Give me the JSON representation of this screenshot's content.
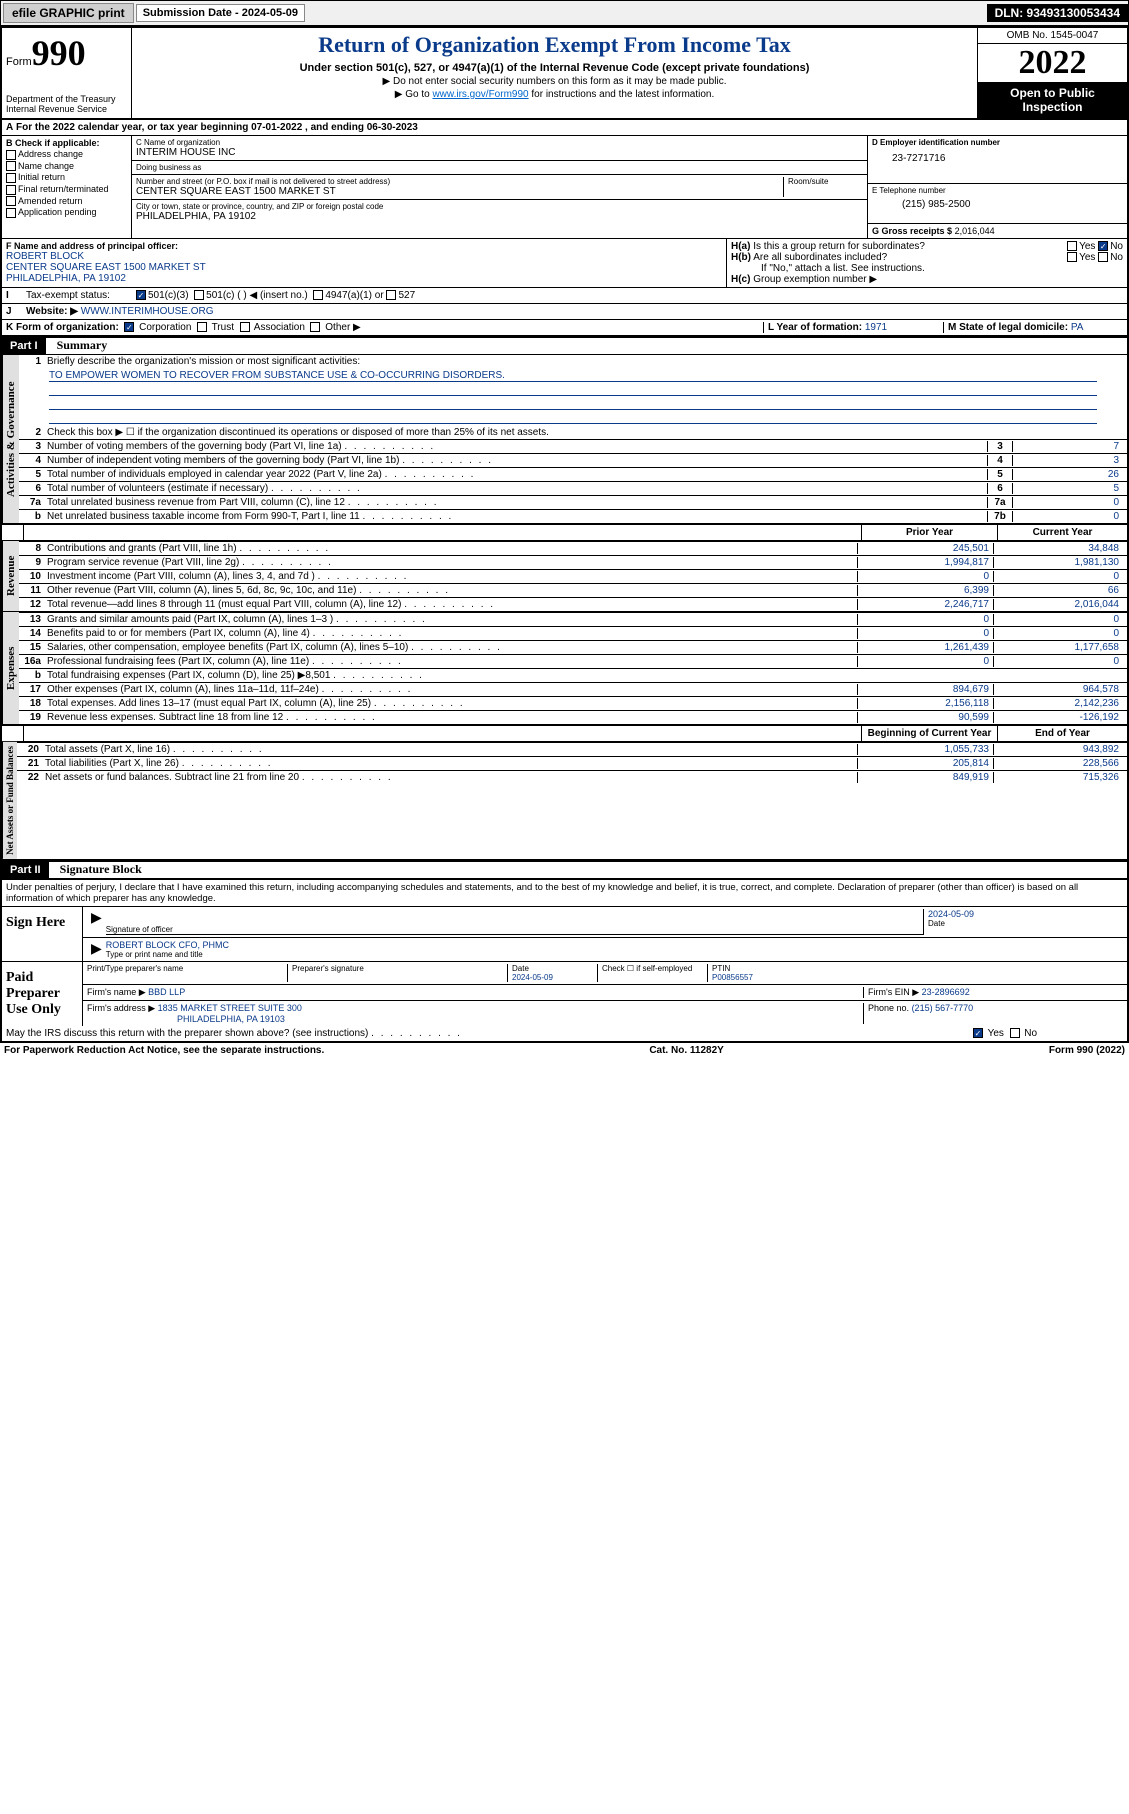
{
  "topbar": {
    "efile": "efile GRAPHIC print",
    "sub_label": "Submission Date - 2024-05-09",
    "dln": "DLN: 93493130053434"
  },
  "header": {
    "form_prefix": "Form",
    "form_num": "990",
    "dept": "Department of the Treasury\nInternal Revenue Service",
    "title": "Return of Organization Exempt From Income Tax",
    "sub": "Under section 501(c), 527, or 4947(a)(1) of the Internal Revenue Code (except private foundations)",
    "note1": "▶ Do not enter social security numbers on this form as it may be made public.",
    "note2_pre": "▶ Go to ",
    "note2_link": "www.irs.gov/Form990",
    "note2_post": " for instructions and the latest information.",
    "omb": "OMB No. 1545-0047",
    "year": "2022",
    "inspection": "Open to Public Inspection"
  },
  "row_a": "For the 2022 calendar year, or tax year beginning 07-01-2022   , and ending 06-30-2023",
  "col_b": {
    "title": "B Check if applicable:",
    "items": [
      "Address change",
      "Name change",
      "Initial return",
      "Final return/terminated",
      "Amended return",
      "Application pending"
    ]
  },
  "col_c": {
    "name_label": "C Name of organization",
    "name": "INTERIM HOUSE INC",
    "dba_label": "Doing business as",
    "dba": "",
    "addr_label": "Number and street (or P.O. box if mail is not delivered to street address)",
    "room_label": "Room/suite",
    "addr": "CENTER SQUARE EAST 1500 MARKET ST",
    "city_label": "City or town, state or province, country, and ZIP or foreign postal code",
    "city": "PHILADELPHIA, PA  19102"
  },
  "col_d": {
    "ein_label": "D Employer identification number",
    "ein": "23-7271716",
    "phone_label": "E Telephone number",
    "phone": "(215) 985-2500",
    "gross_label": "G Gross receipts $",
    "gross": "2,016,044"
  },
  "row_f": {
    "label": "F  Name and address of principal officer:",
    "name": "ROBERT BLOCK",
    "addr1": "CENTER SQUARE EAST 1500 MARKET ST",
    "addr2": "PHILADELPHIA, PA  19102"
  },
  "row_h": {
    "ha": "H(a)  Is this a group return for subordinates?",
    "hb": "H(b)  Are all subordinates included?",
    "hb_note": "If \"No,\" attach a list. See instructions.",
    "hc": "H(c)  Group exemption number ▶",
    "yes": "Yes",
    "no": "No"
  },
  "row_i": {
    "label": "Tax-exempt status:",
    "opts": [
      "501(c)(3)",
      "501(c) (  ) ◀ (insert no.)",
      "4947(a)(1) or",
      "527"
    ]
  },
  "row_j": {
    "label": "Website: ▶",
    "val": "WWW.INTERIMHOUSE.ORG"
  },
  "row_k": {
    "label": "K Form of organization:",
    "opts": [
      "Corporation",
      "Trust",
      "Association",
      "Other ▶"
    ]
  },
  "row_l": {
    "label": "L Year of formation:",
    "val": "1971"
  },
  "row_m": {
    "label": "M State of legal domicile:",
    "val": "PA"
  },
  "part1": {
    "bar": "Part I",
    "title": "Summary"
  },
  "summary": {
    "q1": "Briefly describe the organization's mission or most significant activities:",
    "mission": "TO EMPOWER WOMEN TO RECOVER FROM SUBSTANCE USE & CO-OCCURRING DISORDERS.",
    "q2": "Check this box ▶ ☐  if the organization discontinued its operations or disposed of more than 25% of its net assets.",
    "lines_gov": [
      {
        "n": "3",
        "t": "Number of voting members of the governing body (Part VI, line 1a)",
        "b": "3",
        "v": "7"
      },
      {
        "n": "4",
        "t": "Number of independent voting members of the governing body (Part VI, line 1b)",
        "b": "4",
        "v": "3"
      },
      {
        "n": "5",
        "t": "Total number of individuals employed in calendar year 2022 (Part V, line 2a)",
        "b": "5",
        "v": "26"
      },
      {
        "n": "6",
        "t": "Total number of volunteers (estimate if necessary)",
        "b": "6",
        "v": "5"
      },
      {
        "n": "7a",
        "t": "Total unrelated business revenue from Part VIII, column (C), line 12",
        "b": "7a",
        "v": "0"
      },
      {
        "n": "b",
        "t": "Net unrelated business taxable income from Form 990-T, Part I, line 11",
        "b": "7b",
        "v": "0"
      }
    ],
    "prior": "Prior Year",
    "current": "Current Year",
    "lines_rev": [
      {
        "n": "8",
        "t": "Contributions and grants (Part VIII, line 1h)",
        "p": "245,501",
        "c": "34,848"
      },
      {
        "n": "9",
        "t": "Program service revenue (Part VIII, line 2g)",
        "p": "1,994,817",
        "c": "1,981,130"
      },
      {
        "n": "10",
        "t": "Investment income (Part VIII, column (A), lines 3, 4, and 7d )",
        "p": "0",
        "c": "0"
      },
      {
        "n": "11",
        "t": "Other revenue (Part VIII, column (A), lines 5, 6d, 8c, 9c, 10c, and 11e)",
        "p": "6,399",
        "c": "66"
      },
      {
        "n": "12",
        "t": "Total revenue—add lines 8 through 11 (must equal Part VIII, column (A), line 12)",
        "p": "2,246,717",
        "c": "2,016,044"
      }
    ],
    "lines_exp": [
      {
        "n": "13",
        "t": "Grants and similar amounts paid (Part IX, column (A), lines 1–3 )",
        "p": "0",
        "c": "0"
      },
      {
        "n": "14",
        "t": "Benefits paid to or for members (Part IX, column (A), line 4)",
        "p": "0",
        "c": "0"
      },
      {
        "n": "15",
        "t": "Salaries, other compensation, employee benefits (Part IX, column (A), lines 5–10)",
        "p": "1,261,439",
        "c": "1,177,658"
      },
      {
        "n": "16a",
        "t": "Professional fundraising fees (Part IX, column (A), line 11e)",
        "p": "0",
        "c": "0"
      },
      {
        "n": "b",
        "t": "Total fundraising expenses (Part IX, column (D), line 25) ▶8,501",
        "p": "",
        "c": "",
        "shade": true
      },
      {
        "n": "17",
        "t": "Other expenses (Part IX, column (A), lines 11a–11d, 11f–24e)",
        "p": "894,679",
        "c": "964,578"
      },
      {
        "n": "18",
        "t": "Total expenses. Add lines 13–17 (must equal Part IX, column (A), line 25)",
        "p": "2,156,118",
        "c": "2,142,236"
      },
      {
        "n": "19",
        "t": "Revenue less expenses. Subtract line 18 from line 12",
        "p": "90,599",
        "c": "-126,192"
      }
    ],
    "begin": "Beginning of Current Year",
    "end": "End of Year",
    "lines_net": [
      {
        "n": "20",
        "t": "Total assets (Part X, line 16)",
        "p": "1,055,733",
        "c": "943,892"
      },
      {
        "n": "21",
        "t": "Total liabilities (Part X, line 26)",
        "p": "205,814",
        "c": "228,566"
      },
      {
        "n": "22",
        "t": "Net assets or fund balances. Subtract line 21 from line 20",
        "p": "849,919",
        "c": "715,326"
      }
    ]
  },
  "vtabs": {
    "gov": "Activities & Governance",
    "rev": "Revenue",
    "exp": "Expenses",
    "net": "Net Assets or Fund Balances"
  },
  "part2": {
    "bar": "Part II",
    "title": "Signature Block"
  },
  "penalties": "Under penalties of perjury, I declare that I have examined this return, including accompanying schedules and statements, and to the best of my knowledge and belief, it is true, correct, and complete. Declaration of preparer (other than officer) is based on all information of which preparer has any knowledge.",
  "sign": {
    "left": "Sign Here",
    "sig_label": "Signature of officer",
    "date_label": "Date",
    "date": "2024-05-09",
    "name": "ROBERT BLOCK CFO, PHMC",
    "name_label": "Type or print name and title"
  },
  "paid": {
    "left": "Paid Preparer Use Only",
    "h1": "Print/Type preparer's name",
    "h2": "Preparer's signature",
    "h3": "Date",
    "h3v": "2024-05-09",
    "h4": "Check ☐ if self-employed",
    "h5": "PTIN",
    "h5v": "P00856557",
    "firm_label": "Firm's name    ▶",
    "firm": "BBD LLP",
    "ein_label": "Firm's EIN ▶",
    "ein": "23-2896692",
    "addr_label": "Firm's address ▶",
    "addr1": "1835 MARKET STREET SUITE 300",
    "addr2": "PHILADELPHIA, PA  19103",
    "phone_label": "Phone no.",
    "phone": "(215) 567-7770"
  },
  "discuss": "May the IRS discuss this return with the preparer shown above? (see instructions)",
  "footer": {
    "left": "For Paperwork Reduction Act Notice, see the separate instructions.",
    "mid": "Cat. No. 11282Y",
    "right_pre": "Form ",
    "right_bold": "990",
    "right_post": " (2022)"
  },
  "colors": {
    "blue": "#0a3a8a",
    "link": "#0066cc"
  }
}
